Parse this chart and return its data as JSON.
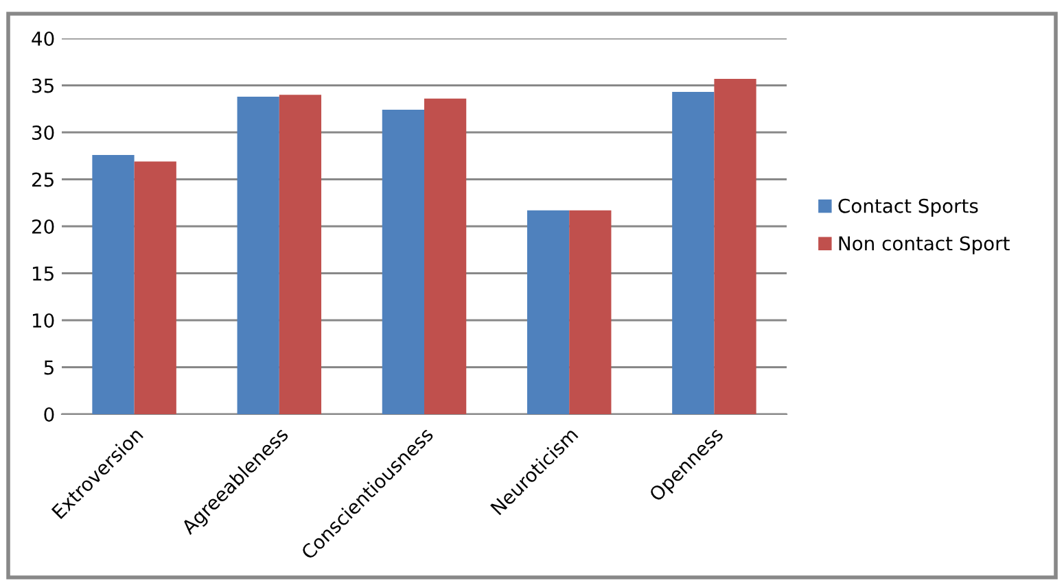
{
  "chart_data": {
    "type": "bar",
    "categories": [
      "Extroversion",
      "Agreeableness",
      "Conscientiousness",
      "Neuroticism",
      "Openness"
    ],
    "series": [
      {
        "name": "Contact Sports",
        "color": "#4f81bd",
        "values": [
          27.6,
          33.8,
          32.4,
          21.7,
          34.3
        ]
      },
      {
        "name": "Non contact Sport",
        "color": "#c0504d",
        "values": [
          26.9,
          34.0,
          33.6,
          21.7,
          35.7
        ]
      }
    ],
    "ylim": [
      0,
      40
    ],
    "yticks": [
      0,
      5,
      10,
      15,
      20,
      25,
      30,
      35,
      40
    ],
    "grid": "y",
    "legend": "right"
  }
}
